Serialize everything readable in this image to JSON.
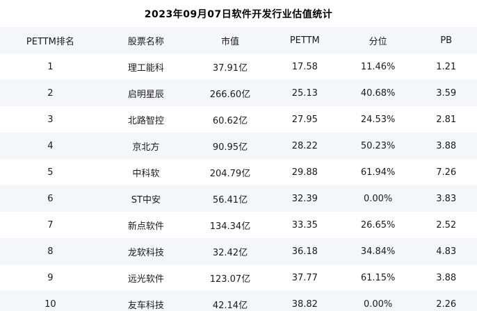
{
  "chart_data": {
    "type": "table",
    "title": "2023年09月07日软件开发行业估值统计",
    "columns": [
      "PETTM排名",
      "股票名称",
      "市值",
      "PETTM",
      "分位",
      "PB"
    ],
    "rows": [
      {
        "rank": "1",
        "name": "理工能科",
        "market_cap": "37.91亿",
        "pettm": "17.58",
        "percentile": "11.46%",
        "pb": "1.21"
      },
      {
        "rank": "2",
        "name": "启明星辰",
        "market_cap": "266.60亿",
        "pettm": "25.13",
        "percentile": "40.68%",
        "pb": "3.59"
      },
      {
        "rank": "3",
        "name": "北路智控",
        "market_cap": "60.62亿",
        "pettm": "27.95",
        "percentile": "24.53%",
        "pb": "2.81"
      },
      {
        "rank": "4",
        "name": "京北方",
        "market_cap": "90.95亿",
        "pettm": "28.22",
        "percentile": "50.23%",
        "pb": "3.88"
      },
      {
        "rank": "5",
        "name": "中科软",
        "market_cap": "204.79亿",
        "pettm": "29.88",
        "percentile": "61.94%",
        "pb": "7.26"
      },
      {
        "rank": "6",
        "name": "ST中安",
        "market_cap": "56.41亿",
        "pettm": "32.39",
        "percentile": "0.00%",
        "pb": "3.83"
      },
      {
        "rank": "7",
        "name": "新点软件",
        "market_cap": "134.34亿",
        "pettm": "33.35",
        "percentile": "26.65%",
        "pb": "2.52"
      },
      {
        "rank": "8",
        "name": "龙软科技",
        "market_cap": "32.42亿",
        "pettm": "36.18",
        "percentile": "34.84%",
        "pb": "4.83"
      },
      {
        "rank": "9",
        "name": "远光软件",
        "market_cap": "123.07亿",
        "pettm": "37.77",
        "percentile": "61.15%",
        "pb": "3.88"
      },
      {
        "rank": "10",
        "name": "友车科技",
        "market_cap": "42.14亿",
        "pettm": "38.82",
        "percentile": "0.00%",
        "pb": "2.26"
      }
    ],
    "layout": {
      "header_position": "top",
      "striped": true,
      "align": "center",
      "grid": "none"
    }
  },
  "colors": {
    "background": "#ffffff",
    "stripe": "#f5f6f9",
    "text": "#1a1a1a",
    "title_text": "#000000"
  }
}
